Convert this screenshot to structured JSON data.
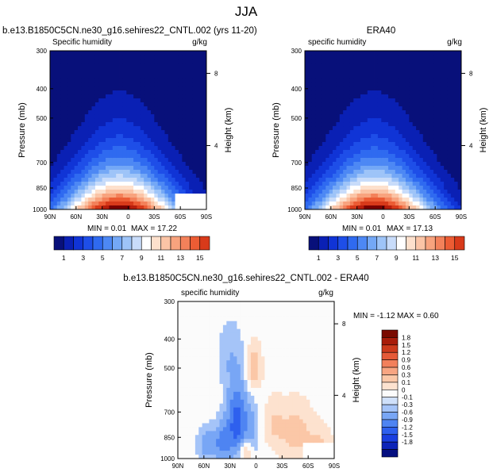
{
  "figure": {
    "title": "JJA"
  },
  "colors": {
    "positive_scale": [
      "#08107a",
      "#0a20b4",
      "#1034d6",
      "#1e4ee8",
      "#2f6af0",
      "#4d88f4",
      "#74a8f6",
      "#9ec4f8",
      "#c8dcfa",
      "#ffffff",
      "#fde0cc",
      "#fbc4a6",
      "#f8a37e",
      "#f3815a",
      "#ec5c34",
      "#d83a1a",
      "#b81e0c",
      "#7a0000"
    ],
    "diff_scale": [
      "#050f80",
      "#0d24b8",
      "#1a3fe0",
      "#2e60ee",
      "#4e84f2",
      "#78a6f5",
      "#a5c4f8",
      "#cfe0fa",
      "#fbfbfb",
      "#fde2cf",
      "#fbc7a7",
      "#f8a582",
      "#f2805c",
      "#e55a38",
      "#cc3a1c",
      "#a81c0a",
      "#7a0a00"
    ]
  },
  "chart_data": [
    {
      "type": "heatmap",
      "id": "model",
      "title": "b.e13.B1850C5CN.ne30_g16.sehires22_CNTL.002 (yrs 11-20)",
      "left_label": "Specific humidity",
      "right_label": "g/kg",
      "ylabel": "Pressure (mb)",
      "ylabel_right": "Height (km)",
      "x_ticks": [
        "90N",
        "60N",
        "30N",
        "0",
        "30S",
        "60S",
        "90S"
      ],
      "y_ticks": [
        "300",
        "400",
        "500",
        "700",
        "850",
        "1000"
      ],
      "y_ticks_right": [
        "8",
        "4"
      ],
      "xlim": [
        90,
        -90
      ],
      "ylim": [
        1000,
        300
      ],
      "min_label": "MIN =  0.01",
      "max_label": "MAX =  17.22",
      "peak_latitude": 10,
      "peak_value": 17.22,
      "colorbar_levels": [
        1,
        2,
        3,
        4,
        5,
        6,
        7,
        8,
        9,
        10,
        11,
        12,
        13,
        14,
        15
      ],
      "colorbar_tick_labels": [
        "1",
        "3",
        "5",
        "7",
        "9",
        "11",
        "13",
        "15"
      ],
      "missing_region": "southern high latitudes near surface"
    },
    {
      "type": "heatmap",
      "id": "obs",
      "title": "ERA40",
      "left_label": "specific humidity",
      "right_label": "g/kg",
      "ylabel": "Pressure (mb)",
      "ylabel_right": "Height (km)",
      "x_ticks": [
        "90N",
        "60N",
        "30N",
        "0",
        "30S",
        "60S",
        "90S"
      ],
      "y_ticks": [
        "300",
        "400",
        "500",
        "700",
        "850",
        "1000"
      ],
      "y_ticks_right": [
        "8",
        "4"
      ],
      "xlim": [
        90,
        -90
      ],
      "ylim": [
        1000,
        300
      ],
      "min_label": "MIN =  0.01",
      "max_label": "MAX =  17.13",
      "peak_latitude": 10,
      "peak_value": 17.13,
      "colorbar_levels": [
        1,
        2,
        3,
        4,
        5,
        6,
        7,
        8,
        9,
        10,
        11,
        12,
        13,
        14,
        15
      ],
      "colorbar_tick_labels": [
        "1",
        "3",
        "5",
        "7",
        "9",
        "11",
        "13",
        "15"
      ]
    },
    {
      "type": "heatmap",
      "id": "diff",
      "title": "b.e13.B1850C5CN.ne30_g16.sehires22_CNTL.002 - ERA40",
      "left_label": "specific humidity",
      "right_label": "g/kg",
      "ylabel": "Pressure (mb)",
      "ylabel_right": "Height (km)",
      "x_ticks": [
        "90N",
        "60N",
        "30N",
        "0",
        "30S",
        "60S",
        "90S"
      ],
      "y_ticks": [
        "300",
        "400",
        "500",
        "700",
        "850",
        "1000"
      ],
      "y_ticks_right": [
        "8",
        "4"
      ],
      "xlim": [
        90,
        -90
      ],
      "ylim": [
        1000,
        300
      ],
      "min_label": "MIN = -1.12",
      "max_label": "MAX =  0.60",
      "colorbar_labels": [
        "1.8",
        "1.5",
        "1.2",
        "0.9",
        "0.6",
        "0.3",
        "0.1",
        "0",
        "-0.1",
        "-0.3",
        "-0.6",
        "-0.9",
        "-1.2",
        "-1.5",
        "-1.8"
      ],
      "features": [
        {
          "kind": "negative",
          "lat": 22,
          "p": 760,
          "amp": -1.1,
          "wlat": 8,
          "wp": 140
        },
        {
          "kind": "negative",
          "lat": 38,
          "p": 880,
          "amp": -0.7,
          "wlat": 6,
          "wp": 90
        },
        {
          "kind": "negative",
          "lat": 55,
          "p": 900,
          "amp": -0.5,
          "wlat": 8,
          "wp": 80
        },
        {
          "kind": "negative",
          "lat": 30,
          "p": 460,
          "amp": -0.25,
          "wlat": 10,
          "wp": 80
        },
        {
          "kind": "negative",
          "lat": 5,
          "p": 800,
          "amp": -0.35,
          "wlat": 6,
          "wp": 120
        },
        {
          "kind": "positive",
          "lat": 2,
          "p": 500,
          "amp": 0.5,
          "wlat": 6,
          "wp": 60
        },
        {
          "kind": "positive",
          "lat": 12,
          "p": 950,
          "amp": 0.55,
          "wlat": 5,
          "wp": 60
        },
        {
          "kind": "positive",
          "lat": -45,
          "p": 820,
          "amp": 0.4,
          "wlat": 15,
          "wp": 130
        },
        {
          "kind": "positive",
          "lat": -75,
          "p": 900,
          "amp": 0.3,
          "wlat": 10,
          "wp": 90
        },
        {
          "kind": "positive",
          "lat": -20,
          "p": 760,
          "amp": 0.25,
          "wlat": 8,
          "wp": 100
        }
      ]
    }
  ]
}
